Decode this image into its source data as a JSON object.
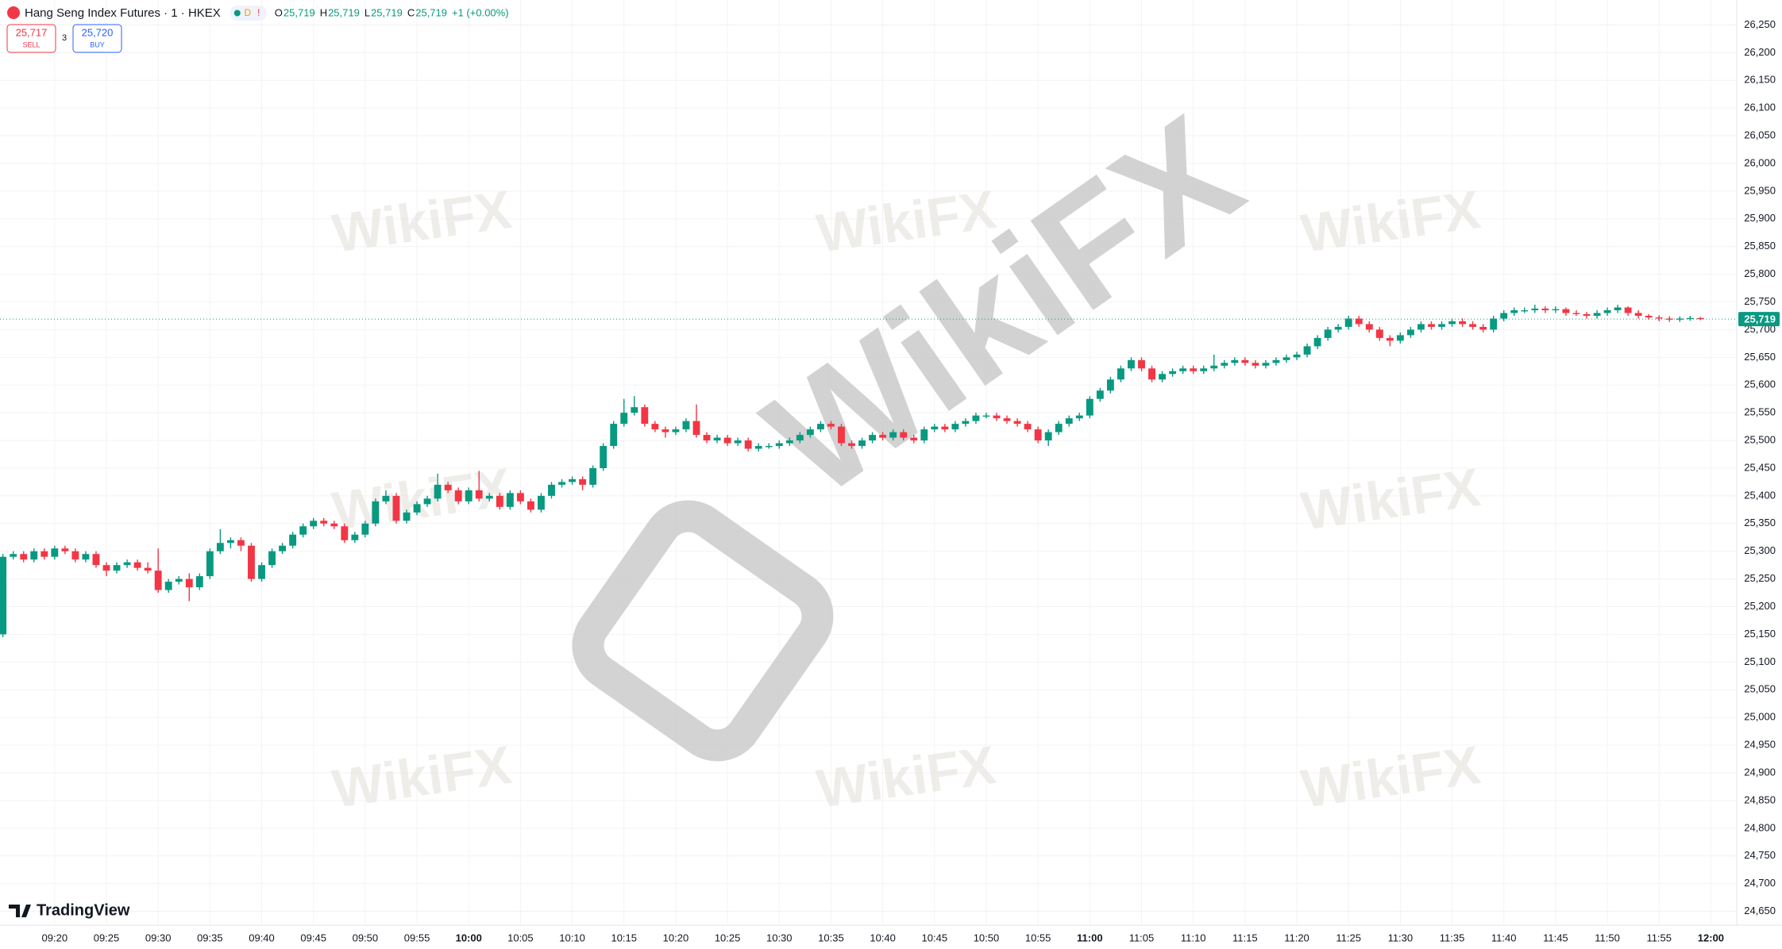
{
  "header": {
    "symbol": "Hang Seng Index Futures · 1 · HKEX",
    "badges": [
      "D",
      "!"
    ],
    "ohlc": [
      {
        "key": "O",
        "value": "25,719"
      },
      {
        "key": "H",
        "value": "25,719"
      },
      {
        "key": "L",
        "value": "25,719"
      },
      {
        "key": "C",
        "value": "25,719"
      }
    ],
    "change": "+1 (+0.00%)",
    "sell": {
      "price": "25,717",
      "label": "SELL"
    },
    "spread": "3",
    "buy": {
      "price": "25,720",
      "label": "BUY"
    }
  },
  "brand": "TradingView",
  "watermark": "WikiFX",
  "chart_data": {
    "type": "candlestick",
    "up_color": "#089981",
    "down_color": "#f23645",
    "grid": true,
    "xlim": [
      -0.28,
      167.5
    ],
    "ylim": [
      24625,
      26295
    ],
    "last_price": {
      "value": 25719,
      "label": "25,719"
    },
    "xticks": [
      {
        "value": 5,
        "label": "09:20"
      },
      {
        "value": 10,
        "label": "09:25"
      },
      {
        "value": 15,
        "label": "09:30"
      },
      {
        "value": 20,
        "label": "09:35"
      },
      {
        "value": 25,
        "label": "09:40"
      },
      {
        "value": 30,
        "label": "09:45"
      },
      {
        "value": 35,
        "label": "09:50"
      },
      {
        "value": 40,
        "label": "09:55"
      },
      {
        "value": 45,
        "label": "10:00"
      },
      {
        "value": 50,
        "label": "10:05"
      },
      {
        "value": 55,
        "label": "10:10"
      },
      {
        "value": 60,
        "label": "10:15"
      },
      {
        "value": 65,
        "label": "10:20"
      },
      {
        "value": 70,
        "label": "10:25"
      },
      {
        "value": 75,
        "label": "10:30"
      },
      {
        "value": 80,
        "label": "10:35"
      },
      {
        "value": 85,
        "label": "10:40"
      },
      {
        "value": 90,
        "label": "10:45"
      },
      {
        "value": 95,
        "label": "10:50"
      },
      {
        "value": 100,
        "label": "10:55"
      },
      {
        "value": 105,
        "label": "11:00"
      },
      {
        "value": 110,
        "label": "11:05"
      },
      {
        "value": 115,
        "label": "11:10"
      },
      {
        "value": 120,
        "label": "11:15"
      },
      {
        "value": 125,
        "label": "11:20"
      },
      {
        "value": 130,
        "label": "11:25"
      },
      {
        "value": 135,
        "label": "11:30"
      },
      {
        "value": 140,
        "label": "11:35"
      },
      {
        "value": 145,
        "label": "11:40"
      },
      {
        "value": 150,
        "label": "11:45"
      },
      {
        "value": 155,
        "label": "11:50"
      },
      {
        "value": 160,
        "label": "11:55"
      },
      {
        "value": 165,
        "label": "12:00"
      }
    ],
    "yticks": [
      {
        "value": 26250,
        "label": "26,250"
      },
      {
        "value": 26200,
        "label": "26,200"
      },
      {
        "value": 26150,
        "label": "26,150"
      },
      {
        "value": 26100,
        "label": "26,100"
      },
      {
        "value": 26050,
        "label": "26,050"
      },
      {
        "value": 26000,
        "label": "26,000"
      },
      {
        "value": 25950,
        "label": "25,950"
      },
      {
        "value": 25900,
        "label": "25,900"
      },
      {
        "value": 25850,
        "label": "25,850"
      },
      {
        "value": 25800,
        "label": "25,800"
      },
      {
        "value": 25750,
        "label": "25,750"
      },
      {
        "value": 25700,
        "label": "25,700"
      },
      {
        "value": 25650,
        "label": "25,650"
      },
      {
        "value": 25600,
        "label": "25,600"
      },
      {
        "value": 25550,
        "label": "25,550"
      },
      {
        "value": 25500,
        "label": "25,500"
      },
      {
        "value": 25450,
        "label": "25,450"
      },
      {
        "value": 25400,
        "label": "25,400"
      },
      {
        "value": 25350,
        "label": "25,350"
      },
      {
        "value": 25300,
        "label": "25,300"
      },
      {
        "value": 25250,
        "label": "25,250"
      },
      {
        "value": 25200,
        "label": "25,200"
      },
      {
        "value": 25150,
        "label": "25,150"
      },
      {
        "value": 25100,
        "label": "25,100"
      },
      {
        "value": 25050,
        "label": "25,050"
      },
      {
        "value": 25000,
        "label": "25,000"
      },
      {
        "value": 24950,
        "label": "24,950"
      },
      {
        "value": 24900,
        "label": "24,900"
      },
      {
        "value": 24850,
        "label": "24,850"
      },
      {
        "value": 24800,
        "label": "24,800"
      },
      {
        "value": 24750,
        "label": "24,750"
      },
      {
        "value": 24700,
        "label": "24,700"
      },
      {
        "value": 24650,
        "label": "24,650"
      }
    ],
    "candles": [
      [
        25150,
        25295,
        25145,
        25290
      ],
      [
        25290,
        25300,
        25285,
        25295
      ],
      [
        25295,
        25300,
        25280,
        25285
      ],
      [
        25285,
        25305,
        25280,
        25300
      ],
      [
        25300,
        25305,
        25285,
        25290
      ],
      [
        25290,
        25310,
        25285,
        25305
      ],
      [
        25305,
        25310,
        25295,
        25300
      ],
      [
        25300,
        25305,
        25280,
        25285
      ],
      [
        25285,
        25300,
        25280,
        25295
      ],
      [
        25295,
        25300,
        25270,
        25275
      ],
      [
        25275,
        25280,
        25255,
        25265
      ],
      [
        25265,
        25280,
        25260,
        25275
      ],
      [
        25275,
        25285,
        25270,
        25280
      ],
      [
        25280,
        25285,
        25265,
        25270
      ],
      [
        25270,
        25280,
        25260,
        25265
      ],
      [
        25265,
        25305,
        25225,
        25230
      ],
      [
        25230,
        25250,
        25225,
        25245
      ],
      [
        25245,
        25255,
        25240,
        25250
      ],
      [
        25250,
        25260,
        25210,
        25235
      ],
      [
        25235,
        25260,
        25230,
        25255
      ],
      [
        25255,
        25305,
        25250,
        25300
      ],
      [
        25300,
        25340,
        25295,
        25315
      ],
      [
        25315,
        25325,
        25305,
        25320
      ],
      [
        25320,
        25325,
        25300,
        25310
      ],
      [
        25310,
        25315,
        25245,
        25250
      ],
      [
        25250,
        25280,
        25245,
        25275
      ],
      [
        25275,
        25305,
        25270,
        25300
      ],
      [
        25300,
        25315,
        25295,
        25310
      ],
      [
        25310,
        25335,
        25305,
        25330
      ],
      [
        25330,
        25350,
        25325,
        25345
      ],
      [
        25345,
        25360,
        25340,
        25355
      ],
      [
        25355,
        25360,
        25345,
        25350
      ],
      [
        25350,
        25355,
        25340,
        25345
      ],
      [
        25345,
        25350,
        25315,
        25320
      ],
      [
        25320,
        25335,
        25315,
        25330
      ],
      [
        25330,
        25355,
        25325,
        25350
      ],
      [
        25350,
        25395,
        25345,
        25390
      ],
      [
        25390,
        25410,
        25385,
        25400
      ],
      [
        25400,
        25405,
        25350,
        25355
      ],
      [
        25355,
        25375,
        25350,
        25370
      ],
      [
        25370,
        25390,
        25365,
        25385
      ],
      [
        25385,
        25400,
        25380,
        25395
      ],
      [
        25395,
        25440,
        25390,
        25420
      ],
      [
        25420,
        25425,
        25405,
        25410
      ],
      [
        25410,
        25415,
        25385,
        25390
      ],
      [
        25390,
        25415,
        25385,
        25410
      ],
      [
        25410,
        25445,
        25390,
        25395
      ],
      [
        25395,
        25405,
        25390,
        25400
      ],
      [
        25400,
        25405,
        25375,
        25380
      ],
      [
        25380,
        25410,
        25375,
        25405
      ],
      [
        25405,
        25410,
        25385,
        25390
      ],
      [
        25390,
        25395,
        25370,
        25375
      ],
      [
        25375,
        25405,
        25370,
        25400
      ],
      [
        25400,
        25425,
        25395,
        25420
      ],
      [
        25420,
        25430,
        25415,
        25425
      ],
      [
        25425,
        25435,
        25420,
        25430
      ],
      [
        25430,
        25435,
        25410,
        25420
      ],
      [
        25420,
        25455,
        25415,
        25450
      ],
      [
        25450,
        25495,
        25445,
        25490
      ],
      [
        25490,
        25535,
        25485,
        25530
      ],
      [
        25530,
        25575,
        25525,
        25550
      ],
      [
        25550,
        25580,
        25545,
        25560
      ],
      [
        25560,
        25565,
        25525,
        25530
      ],
      [
        25530,
        25535,
        25515,
        25520
      ],
      [
        25520,
        25525,
        25505,
        25515
      ],
      [
        25515,
        25525,
        25510,
        25520
      ],
      [
        25520,
        25540,
        25515,
        25535
      ],
      [
        25535,
        25565,
        25505,
        25510
      ],
      [
        25510,
        25515,
        25495,
        25500
      ],
      [
        25500,
        25510,
        25495,
        25505
      ],
      [
        25505,
        25510,
        25490,
        25495
      ],
      [
        25495,
        25505,
        25490,
        25500
      ],
      [
        25500,
        25505,
        25480,
        25485
      ],
      [
        25485,
        25495,
        25480,
        25490
      ],
      [
        25490,
        25495,
        25485,
        25490
      ],
      [
        25490,
        25500,
        25485,
        25495
      ],
      [
        25495,
        25505,
        25490,
        25500
      ],
      [
        25500,
        25515,
        25495,
        25510
      ],
      [
        25510,
        25525,
        25505,
        25520
      ],
      [
        25520,
        25535,
        25515,
        25530
      ],
      [
        25530,
        25535,
        25520,
        25525
      ],
      [
        25525,
        25530,
        25490,
        25495
      ],
      [
        25495,
        25500,
        25485,
        25490
      ],
      [
        25490,
        25505,
        25485,
        25500
      ],
      [
        25500,
        25515,
        25495,
        25510
      ],
      [
        25510,
        25515,
        25500,
        25505
      ],
      [
        25505,
        25520,
        25500,
        25515
      ],
      [
        25515,
        25520,
        25500,
        25505
      ],
      [
        25505,
        25510,
        25495,
        25500
      ],
      [
        25500,
        25525,
        25495,
        25520
      ],
      [
        25520,
        25530,
        25515,
        25525
      ],
      [
        25525,
        25530,
        25515,
        25520
      ],
      [
        25520,
        25535,
        25515,
        25530
      ],
      [
        25530,
        25540,
        25525,
        25535
      ],
      [
        25535,
        25550,
        25530,
        25545
      ],
      [
        25545,
        25550,
        25540,
        25545
      ],
      [
        25545,
        25550,
        25535,
        25540
      ],
      [
        25540,
        25545,
        25530,
        25535
      ],
      [
        25535,
        25540,
        25525,
        25530
      ],
      [
        25530,
        25535,
        25515,
        25520
      ],
      [
        25520,
        25525,
        25495,
        25500
      ],
      [
        25500,
        25520,
        25490,
        25515
      ],
      [
        25515,
        25535,
        25510,
        25530
      ],
      [
        25530,
        25545,
        25525,
        25540
      ],
      [
        25540,
        25550,
        25535,
        25545
      ],
      [
        25545,
        25580,
        25540,
        25575
      ],
      [
        25575,
        25595,
        25570,
        25590
      ],
      [
        25590,
        25615,
        25585,
        25610
      ],
      [
        25610,
        25635,
        25605,
        25630
      ],
      [
        25630,
        25650,
        25625,
        25645
      ],
      [
        25645,
        25650,
        25625,
        25630
      ],
      [
        25630,
        25635,
        25605,
        25610
      ],
      [
        25610,
        25625,
        25605,
        25620
      ],
      [
        25620,
        25630,
        25615,
        25625
      ],
      [
        25625,
        25635,
        25620,
        25630
      ],
      [
        25630,
        25635,
        25620,
        25625
      ],
      [
        25625,
        25635,
        25620,
        25630
      ],
      [
        25630,
        25655,
        25625,
        25635
      ],
      [
        25635,
        25645,
        25630,
        25640
      ],
      [
        25640,
        25650,
        25635,
        25645
      ],
      [
        25645,
        25650,
        25635,
        25640
      ],
      [
        25640,
        25645,
        25630,
        25635
      ],
      [
        25635,
        25645,
        25630,
        25640
      ],
      [
        25640,
        25650,
        25635,
        25645
      ],
      [
        25645,
        25655,
        25640,
        25650
      ],
      [
        25650,
        25660,
        25645,
        25655
      ],
      [
        25655,
        25675,
        25650,
        25670
      ],
      [
        25670,
        25690,
        25665,
        25685
      ],
      [
        25685,
        25705,
        25680,
        25700
      ],
      [
        25700,
        25710,
        25695,
        25705
      ],
      [
        25705,
        25725,
        25700,
        25720
      ],
      [
        25720,
        25725,
        25705,
        25710
      ],
      [
        25710,
        25715,
        25695,
        25700
      ],
      [
        25700,
        25705,
        25680,
        25685
      ],
      [
        25685,
        25690,
        25670,
        25680
      ],
      [
        25680,
        25695,
        25675,
        25690
      ],
      [
        25690,
        25705,
        25685,
        25700
      ],
      [
        25700,
        25715,
        25695,
        25710
      ],
      [
        25710,
        25715,
        25700,
        25705
      ],
      [
        25705,
        25715,
        25700,
        25710
      ],
      [
        25710,
        25720,
        25705,
        25715
      ],
      [
        25715,
        25720,
        25705,
        25710
      ],
      [
        25710,
        25715,
        25700,
        25705
      ],
      [
        25705,
        25710,
        25695,
        25700
      ],
      [
        25700,
        25725,
        25695,
        25720
      ],
      [
        25720,
        25735,
        25715,
        25730
      ],
      [
        25730,
        25740,
        25725,
        25735
      ],
      [
        25735,
        25740,
        25730,
        25735
      ],
      [
        25735,
        25745,
        25730,
        25738
      ],
      [
        25738,
        25742,
        25730,
        25735
      ],
      [
        25735,
        25742,
        25730,
        25737
      ],
      [
        25737,
        25740,
        25725,
        25730
      ],
      [
        25730,
        25735,
        25725,
        25728
      ],
      [
        25728,
        25732,
        25720,
        25725
      ],
      [
        25725,
        25735,
        25720,
        25730
      ],
      [
        25730,
        25740,
        25725,
        25735
      ],
      [
        25735,
        25745,
        25730,
        25740
      ],
      [
        25740,
        25742,
        25725,
        25730
      ],
      [
        25730,
        25735,
        25720,
        25725
      ],
      [
        25725,
        25728,
        25718,
        25722
      ],
      [
        25722,
        25726,
        25715,
        25720
      ],
      [
        25720,
        25724,
        25714,
        25718
      ],
      [
        25718,
        25724,
        25714,
        25720
      ],
      [
        25720,
        25725,
        25716,
        25721
      ],
      [
        25721,
        25723,
        25717,
        25719
      ]
    ]
  }
}
